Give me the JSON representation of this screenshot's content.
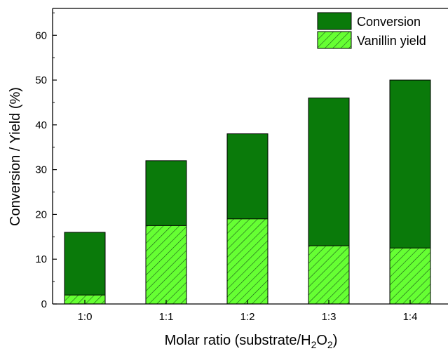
{
  "chart_data": {
    "type": "bar",
    "stacked": false,
    "overlay": true,
    "categories": [
      "1:0",
      "1:1",
      "1:2",
      "1:3",
      "1:4"
    ],
    "series": [
      {
        "name": "Conversion",
        "values": [
          16,
          32,
          38,
          46,
          50
        ],
        "color": "#0a7a0a",
        "pattern": "solid"
      },
      {
        "name": "Vanillin yield",
        "values": [
          2,
          17.5,
          19,
          13,
          12.5
        ],
        "color": "#66ff33",
        "pattern": "diagonal-hatch"
      }
    ],
    "xlabel_main": "Molar ratio (substrate/H",
    "xlabel_sub1": "2",
    "xlabel_mid": "O",
    "xlabel_sub2": "2",
    "xlabel_close": ")",
    "ylabel": "Conversion / Yield (%)",
    "ylim": [
      0,
      66
    ],
    "yticks": [
      0,
      10,
      20,
      30,
      40,
      50,
      60
    ],
    "legend_position": "top-right",
    "grid": false
  }
}
